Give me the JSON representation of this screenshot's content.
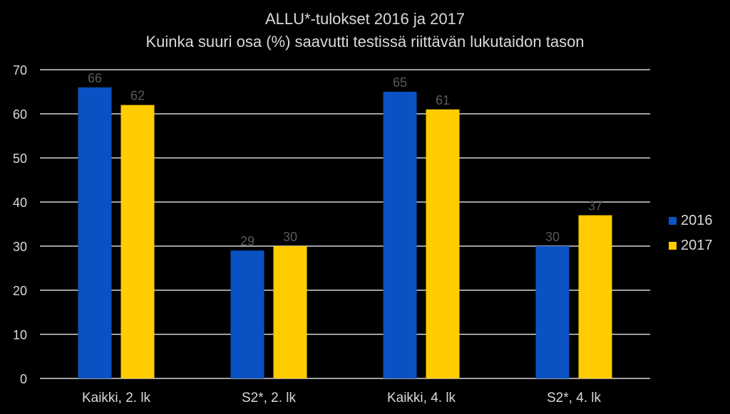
{
  "chart_data": {
    "type": "bar",
    "title": "ALLU*-tulokset 2016 ja 2017",
    "subtitle": "Kuinka suuri osa (%) saavutti testissä riittävän lukutaidon tason",
    "categories": [
      "Kaikki, 2. lk",
      "S2*, 2. lk",
      "Kaikki, 4. lk",
      "S2*, 4. lk"
    ],
    "series": [
      {
        "name": "2016",
        "values": [
          66,
          29,
          65,
          30
        ],
        "color": "#0a52c4"
      },
      {
        "name": "2017",
        "values": [
          62,
          30,
          61,
          37
        ],
        "color": "#ffcc00"
      }
    ],
    "ylim": [
      0,
      70
    ],
    "yticks": [
      0,
      10,
      20,
      30,
      40,
      50,
      60,
      70
    ],
    "grid": true,
    "legend": "right",
    "colors": {
      "background": "#000000",
      "text": "#d9d9d9",
      "data_label": "#595959",
      "grid": "#ffffff"
    }
  }
}
